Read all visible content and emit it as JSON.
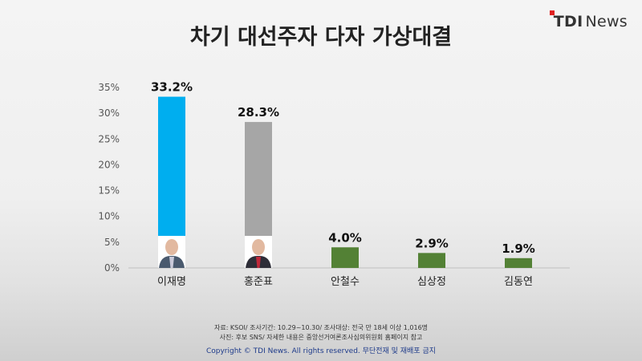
{
  "header": {
    "title": "차기 대선주자 다자 가상대결",
    "logo_tdi": "TDI",
    "logo_news": "News"
  },
  "chart_data": {
    "type": "bar",
    "categories": [
      "이재명",
      "홍준표",
      "안철수",
      "심상정",
      "김동연"
    ],
    "values": [
      33.2,
      28.3,
      4.0,
      2.9,
      1.9
    ],
    "value_labels": [
      "33.2%",
      "28.3%",
      "4.0%",
      "2.9%",
      "1.9%"
    ],
    "bar_colors": [
      "#00aeef",
      "#a6a6a6",
      "#538135",
      "#538135",
      "#538135"
    ],
    "candidate_photos": [
      true,
      true,
      false,
      false,
      false
    ],
    "yticks": [
      "0%",
      "5%",
      "10%",
      "15%",
      "20%",
      "25%",
      "30%",
      "35%"
    ],
    "ylim": [
      0,
      35
    ],
    "grid": false,
    "title": "차기 대선주자 다자 가상대결",
    "xlabel": "",
    "ylabel": ""
  },
  "footer": {
    "source_line": "자료: KSOI/ 조사기간: 10.29~10.30/ 조사대상: 전국 만 18세 이상 1,016명",
    "note_line": "사진: 후보 SNS/ 자세한 내용은 중앙선거여론조사심의위원회 홈페이지 참고",
    "copyright": "Copyright © TDI News. All rights reserved. 무단전재 및 재배포 금지"
  }
}
